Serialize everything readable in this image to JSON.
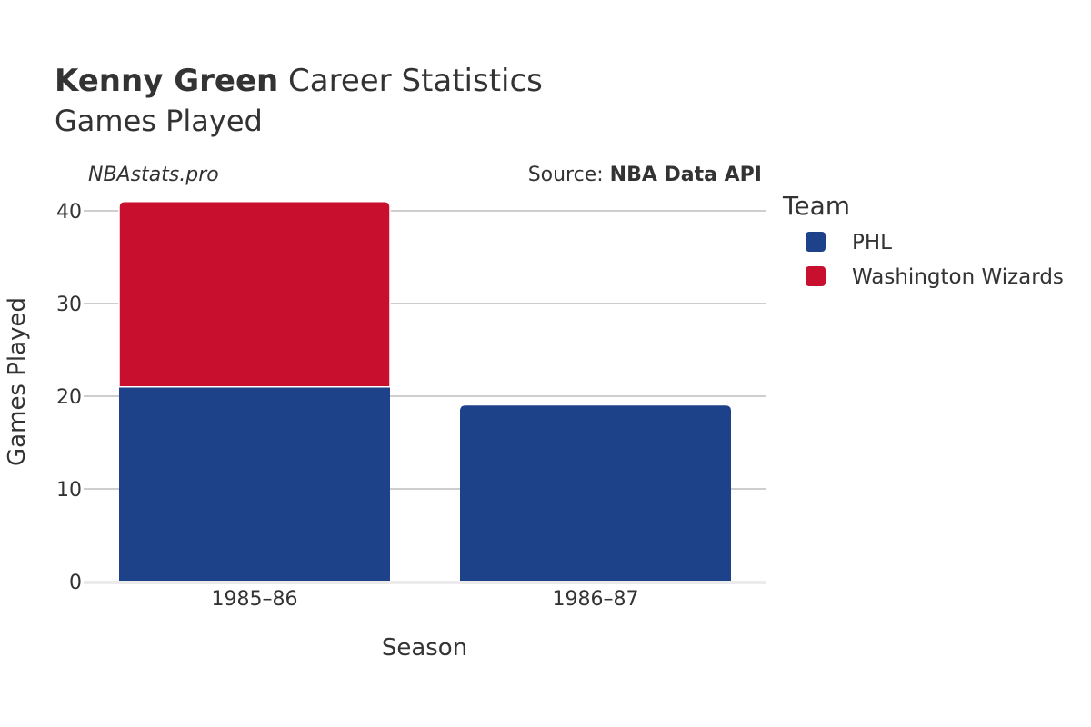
{
  "title": {
    "bold": "Kenny Green",
    "rest": " Career Statistics",
    "subtitle": "Games Played"
  },
  "watermark": "NBAstats.pro",
  "source": {
    "prefix": "Source: ",
    "name": "NBA Data API"
  },
  "legend": {
    "title": "Team",
    "items": [
      {
        "label": "PHL",
        "color": "#1d428a"
      },
      {
        "label": "Washington Wizards",
        "color": "#c8102e"
      }
    ]
  },
  "chart_data": {
    "type": "bar",
    "stacked": true,
    "categories": [
      "1985–86",
      "1986–87"
    ],
    "series": [
      {
        "name": "PHL",
        "color": "#1d428a",
        "values": [
          21,
          19
        ]
      },
      {
        "name": "Washington Wizards",
        "color": "#c8102e",
        "values": [
          20,
          0
        ]
      }
    ],
    "xlabel": "Season",
    "ylabel": "Games Played",
    "ylim": [
      0,
      42
    ],
    "yticks": [
      0,
      10,
      20,
      30,
      40
    ],
    "grid": true,
    "legend_position": "right"
  }
}
